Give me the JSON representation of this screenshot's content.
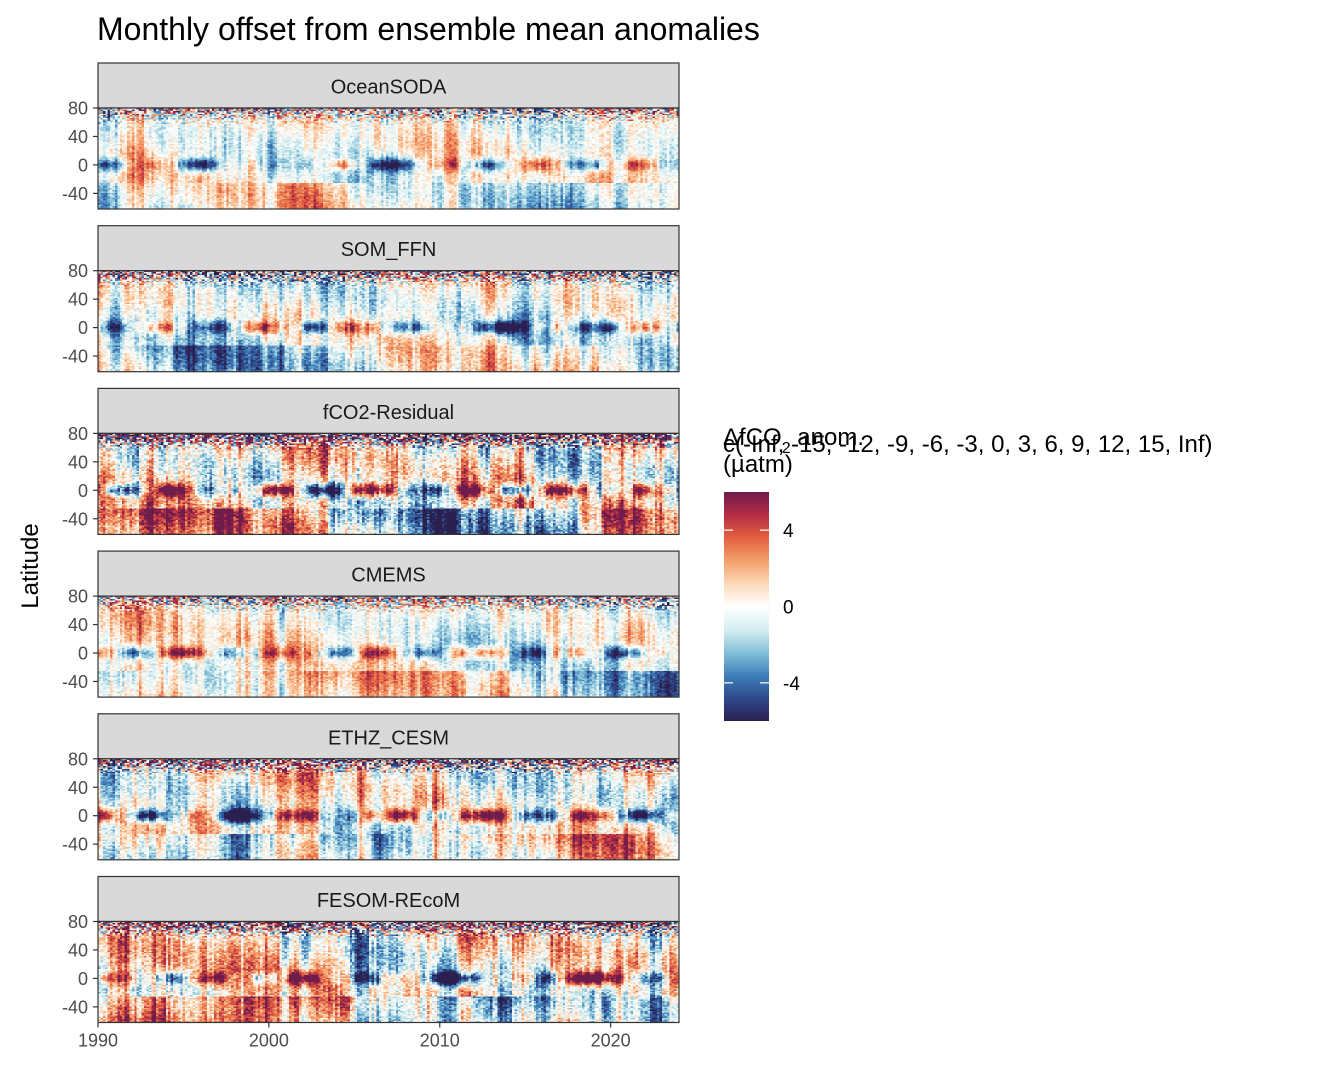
{
  "chart_data": {
    "type": "heatmap",
    "title": "Monthly offset from ensemble mean anomalies",
    "ylabel": "Latitude",
    "xlabel": "",
    "x_ticks": [
      "1990",
      "2000",
      "2010",
      "2020"
    ],
    "x_tick_values": [
      1990,
      2000,
      2010,
      2020
    ],
    "xlim": [
      1990,
      2024
    ],
    "y_ticks": [
      "80",
      "40",
      "0",
      "-40"
    ],
    "y_tick_values": [
      80,
      40,
      0,
      -40
    ],
    "ylim": [
      -62,
      80
    ],
    "grid": false,
    "facets": [
      {
        "name": "OceanSODA",
        "intensity": 0.85
      },
      {
        "name": "SOM_FFN",
        "intensity": 1.0
      },
      {
        "name": "fCO2-Residual",
        "intensity": 1.45
      },
      {
        "name": "CMEMS",
        "intensity": 0.9
      },
      {
        "name": "ETHZ_CESM",
        "intensity": 1.15
      },
      {
        "name": "FESOM-REcoM",
        "intensity": 1.3
      }
    ],
    "legend": {
      "title_line1": "ΔfCO",
      "title_sub": "2",
      "title_line1_rest": " anom.",
      "title_line2": "c(-Inf, -15, -12, -9, -6, -3, 0, 3, 6, 9, 12, 15, Inf)",
      "title_line3": "(µatm)",
      "ticks": [
        "4",
        "0",
        "-4"
      ],
      "tick_values": [
        4,
        0,
        -4
      ],
      "range": [
        -6,
        6
      ],
      "placement": "right",
      "colors": [
        "#2a1f4f",
        "#2e4a8c",
        "#3f7fba",
        "#85c1d9",
        "#d6eef0",
        "#ffffff",
        "#fcd9b8",
        "#f4a06a",
        "#e3603f",
        "#b52d45",
        "#6e1c4c"
      ]
    },
    "strip_fill": "#d9d9d9",
    "panel_border": "#333333"
  }
}
